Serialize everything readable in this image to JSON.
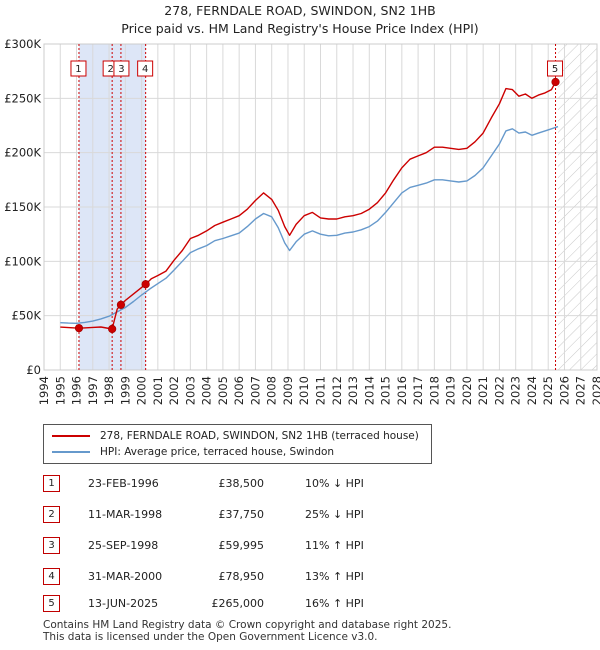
{
  "title": "278, FERNDALE ROAD, SWINDON, SN2 1HB",
  "subtitle": "Price paid vs. HM Land Registry's House Price Index (HPI)",
  "colors": {
    "property_line": "#cc0000",
    "hpi_line": "#6699cc",
    "sale_band": "#dde6f7",
    "hatch": "#cccccc",
    "marker_line": "#cc0000"
  },
  "chart_data": {
    "type": "line",
    "x_range": [
      1994,
      2028
    ],
    "ylim": [
      0,
      300000
    ],
    "y_ticks": [
      0,
      50000,
      100000,
      150000,
      200000,
      250000,
      300000
    ],
    "y_tick_labels": [
      "£0",
      "£50K",
      "£100K",
      "£150K",
      "£200K",
      "£250K",
      "£300K"
    ],
    "x_ticks": [
      1994,
      1995,
      1996,
      1997,
      1998,
      1999,
      2000,
      2001,
      2002,
      2003,
      2004,
      2005,
      2006,
      2007,
      2008,
      2009,
      2010,
      2011,
      2012,
      2013,
      2014,
      2015,
      2016,
      2017,
      2018,
      2019,
      2020,
      2021,
      2022,
      2023,
      2024,
      2025,
      2026,
      2027,
      2028
    ],
    "grid": true,
    "data_start": 1995.0,
    "data_end": 2025.6,
    "series": [
      {
        "name": "278, FERNDALE ROAD, SWINDON, SN2 1HB (terraced house)",
        "points": [
          [
            1995.0,
            39500
          ],
          [
            1995.5,
            39000
          ],
          [
            1996.15,
            38500
          ],
          [
            1996.6,
            38800
          ],
          [
            1997.0,
            39200
          ],
          [
            1997.5,
            39600
          ],
          [
            1998.19,
            37750
          ],
          [
            1998.5,
            56000
          ],
          [
            1998.73,
            59995
          ],
          [
            1999.0,
            64000
          ],
          [
            1999.5,
            70000
          ],
          [
            2000.25,
            78950
          ],
          [
            2000.6,
            84000
          ],
          [
            2001.0,
            87000
          ],
          [
            2001.5,
            91000
          ],
          [
            2002.0,
            101000
          ],
          [
            2002.5,
            110000
          ],
          [
            2003.0,
            121000
          ],
          [
            2003.5,
            124000
          ],
          [
            2004.0,
            128000
          ],
          [
            2004.5,
            133000
          ],
          [
            2005.0,
            136000
          ],
          [
            2005.5,
            139000
          ],
          [
            2006.0,
            142000
          ],
          [
            2006.5,
            148000
          ],
          [
            2007.0,
            156000
          ],
          [
            2007.5,
            163000
          ],
          [
            2008.0,
            157000
          ],
          [
            2008.4,
            147000
          ],
          [
            2008.8,
            132000
          ],
          [
            2009.1,
            124000
          ],
          [
            2009.5,
            134000
          ],
          [
            2010.0,
            142000
          ],
          [
            2010.5,
            145000
          ],
          [
            2011.0,
            140000
          ],
          [
            2011.5,
            139000
          ],
          [
            2012.0,
            139000
          ],
          [
            2012.5,
            141000
          ],
          [
            2013.0,
            142000
          ],
          [
            2013.5,
            144000
          ],
          [
            2014.0,
            148000
          ],
          [
            2014.5,
            154000
          ],
          [
            2015.0,
            163000
          ],
          [
            2015.5,
            175000
          ],
          [
            2016.0,
            186000
          ],
          [
            2016.5,
            194000
          ],
          [
            2017.0,
            197000
          ],
          [
            2017.5,
            200000
          ],
          [
            2018.0,
            205000
          ],
          [
            2018.5,
            205000
          ],
          [
            2019.0,
            204000
          ],
          [
            2019.5,
            203000
          ],
          [
            2020.0,
            204000
          ],
          [
            2020.5,
            210000
          ],
          [
            2021.0,
            218000
          ],
          [
            2021.5,
            232000
          ],
          [
            2022.0,
            245000
          ],
          [
            2022.4,
            259000
          ],
          [
            2022.8,
            258000
          ],
          [
            2023.2,
            252000
          ],
          [
            2023.6,
            254000
          ],
          [
            2024.0,
            250000
          ],
          [
            2024.4,
            253000
          ],
          [
            2024.8,
            255000
          ],
          [
            2025.2,
            258000
          ],
          [
            2025.45,
            265000
          ]
        ]
      },
      {
        "name": "HPI: Average price, terraced house, Swindon",
        "points": [
          [
            1995.0,
            43500
          ],
          [
            1995.5,
            43200
          ],
          [
            1996.0,
            43000
          ],
          [
            1996.5,
            43800
          ],
          [
            1997.0,
            45000
          ],
          [
            1997.5,
            47000
          ],
          [
            1998.0,
            49500
          ],
          [
            1998.5,
            53500
          ],
          [
            1999.0,
            57500
          ],
          [
            1999.5,
            63000
          ],
          [
            2000.0,
            69000
          ],
          [
            2000.5,
            74500
          ],
          [
            2001.0,
            79500
          ],
          [
            2001.5,
            84500
          ],
          [
            2002.0,
            92000
          ],
          [
            2002.5,
            100000
          ],
          [
            2003.0,
            108000
          ],
          [
            2003.5,
            111500
          ],
          [
            2004.0,
            114500
          ],
          [
            2004.5,
            119000
          ],
          [
            2005.0,
            121000
          ],
          [
            2005.5,
            123500
          ],
          [
            2006.0,
            126000
          ],
          [
            2006.5,
            132000
          ],
          [
            2007.0,
            139000
          ],
          [
            2007.5,
            144000
          ],
          [
            2008.0,
            141000
          ],
          [
            2008.4,
            131000
          ],
          [
            2008.8,
            117000
          ],
          [
            2009.1,
            110000
          ],
          [
            2009.5,
            118000
          ],
          [
            2010.0,
            125000
          ],
          [
            2010.5,
            128000
          ],
          [
            2011.0,
            125000
          ],
          [
            2011.5,
            123500
          ],
          [
            2012.0,
            124000
          ],
          [
            2012.5,
            126000
          ],
          [
            2013.0,
            127000
          ],
          [
            2013.5,
            129000
          ],
          [
            2014.0,
            132000
          ],
          [
            2014.5,
            137000
          ],
          [
            2015.0,
            145000
          ],
          [
            2015.5,
            154000
          ],
          [
            2016.0,
            163000
          ],
          [
            2016.5,
            168000
          ],
          [
            2017.0,
            170000
          ],
          [
            2017.5,
            172000
          ],
          [
            2018.0,
            175000
          ],
          [
            2018.5,
            175000
          ],
          [
            2019.0,
            174000
          ],
          [
            2019.5,
            173000
          ],
          [
            2020.0,
            174000
          ],
          [
            2020.5,
            179000
          ],
          [
            2021.0,
            186000
          ],
          [
            2021.5,
            197000
          ],
          [
            2022.0,
            208000
          ],
          [
            2022.4,
            220000
          ],
          [
            2022.8,
            222000
          ],
          [
            2023.2,
            218000
          ],
          [
            2023.6,
            219000
          ],
          [
            2024.0,
            216000
          ],
          [
            2024.4,
            218000
          ],
          [
            2024.8,
            220000
          ],
          [
            2025.2,
            222000
          ],
          [
            2025.6,
            224000
          ]
        ]
      }
    ],
    "sale_band": [
      1996.15,
      2000.25
    ],
    "sales": [
      {
        "label": "1",
        "x": 1996.15,
        "value": 38500
      },
      {
        "label": "2",
        "x": 1998.19,
        "value": 37750
      },
      {
        "label": "3",
        "x": 1998.73,
        "value": 59995
      },
      {
        "label": "4",
        "x": 2000.25,
        "value": 78950
      },
      {
        "label": "5",
        "x": 2025.45,
        "value": 265000
      }
    ]
  },
  "legend": [
    {
      "label": "278, FERNDALE ROAD, SWINDON, SN2 1HB (terraced house)"
    },
    {
      "label": "HPI: Average price, terraced house, Swindon"
    }
  ],
  "sales_table": [
    {
      "num": "1",
      "date": "23-FEB-1996",
      "price": "£38,500",
      "hpi": "10% ↓ HPI"
    },
    {
      "num": "2",
      "date": "11-MAR-1998",
      "price": "£37,750",
      "hpi": "25% ↓ HPI"
    },
    {
      "num": "3",
      "date": "25-SEP-1998",
      "price": "£59,995",
      "hpi": "11% ↑ HPI"
    },
    {
      "num": "4",
      "date": "31-MAR-2000",
      "price": "£78,950",
      "hpi": "13% ↑ HPI"
    },
    {
      "num": "5",
      "date": "13-JUN-2025",
      "price": "£265,000",
      "hpi": "16% ↑ HPI"
    }
  ],
  "footer": {
    "line1": "Contains HM Land Registry data © Crown copyright and database right 2025.",
    "line2": "This data is licensed under the Open Government Licence v3.0."
  }
}
